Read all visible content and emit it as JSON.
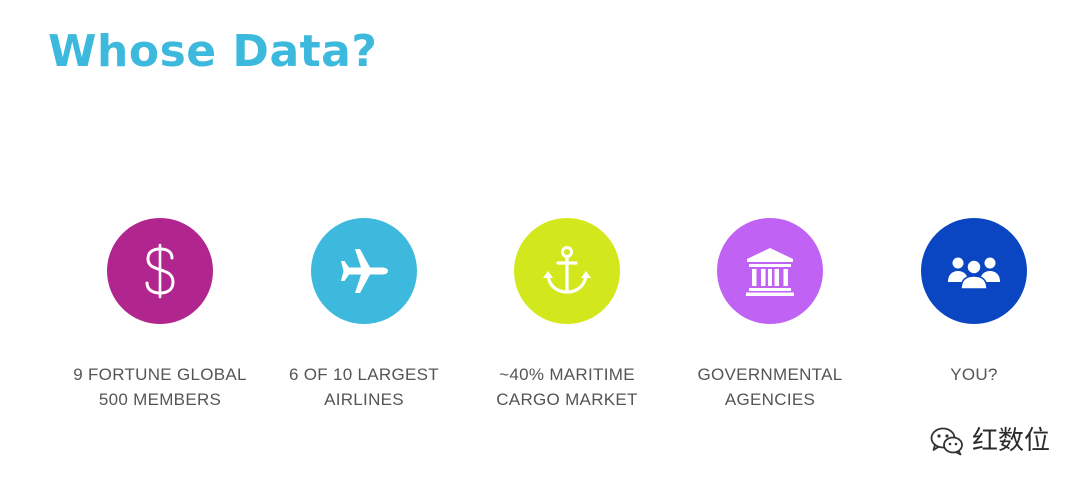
{
  "slide": {
    "title": "Whose Data?"
  },
  "colors": {
    "title": "#3cb9dc",
    "caption_text": "#555555"
  },
  "cards": [
    {
      "icon": "dollar-sign-icon",
      "color": "#b1258f",
      "line1": "9 FORTUNE GLOBAL",
      "line2": "500 MEMBERS"
    },
    {
      "icon": "airplane-icon",
      "color": "#3cb9dc",
      "line1": "6 OF 10 LARGEST",
      "line2": "AIRLINES"
    },
    {
      "icon": "anchor-icon",
      "color": "#d3e81c",
      "line1": "~40% MARITIME",
      "line2": "CARGO MARKET"
    },
    {
      "icon": "government-building-icon",
      "color": "#c063f5",
      "line1": "GOVERNMENTAL",
      "line2": "AGENCIES"
    },
    {
      "icon": "group-of-people-icon",
      "color": "#0a45c2",
      "line1": "YOU?",
      "line2": ""
    }
  ],
  "watermark": {
    "icon": "wechat-logo-icon",
    "text": "红数位"
  }
}
